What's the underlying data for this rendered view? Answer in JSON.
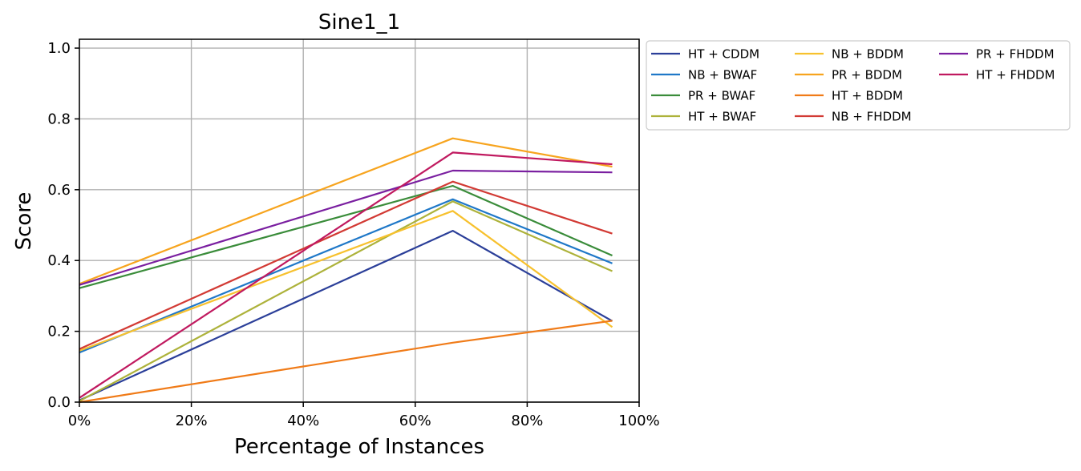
{
  "chart_data": {
    "type": "line",
    "title": "Sine1_1",
    "xlabel": "Percentage of Instances",
    "ylabel": "Score",
    "xlim": [
      0,
      100
    ],
    "ylim": [
      0,
      1.025
    ],
    "x_ticks": [
      0,
      20,
      40,
      60,
      80,
      100
    ],
    "x_tick_labels": [
      "0%",
      "20%",
      "40%",
      "60%",
      "80%",
      "100%"
    ],
    "y_ticks": [
      0.0,
      0.2,
      0.4,
      0.6,
      0.8,
      1.0
    ],
    "y_tick_labels": [
      "0.0",
      "0.2",
      "0.4",
      "0.6",
      "0.8",
      "1.0"
    ],
    "grid": true,
    "legend_placement": "outside-right-top",
    "legend_columns": 3,
    "x": [
      0,
      66.7,
      95.2
    ],
    "series": [
      {
        "name": "HT + CDDM",
        "color": "#2b3f99",
        "values": [
          0.005,
          0.484,
          0.229
        ]
      },
      {
        "name": "NB + BWAF",
        "color": "#1f78c8",
        "values": [
          0.14,
          0.573,
          0.392
        ]
      },
      {
        "name": "PR + BWAF",
        "color": "#3a8c3a",
        "values": [
          0.322,
          0.611,
          0.414
        ]
      },
      {
        "name": "HT + BWAF",
        "color": "#adb23a",
        "values": [
          0.003,
          0.567,
          0.37
        ]
      },
      {
        "name": "NB + BDDM",
        "color": "#f7c12e",
        "values": [
          0.145,
          0.54,
          0.212
        ]
      },
      {
        "name": "PR + BDDM",
        "color": "#f7a41e",
        "values": [
          0.334,
          0.745,
          0.665
        ]
      },
      {
        "name": "HT + BDDM",
        "color": "#f07b18",
        "values": [
          0.0,
          0.168,
          0.23
        ]
      },
      {
        "name": "NB + FHDDM",
        "color": "#d23a34",
        "values": [
          0.15,
          0.623,
          0.476
        ]
      },
      {
        "name": "PR + FHDDM",
        "color": "#7a1fa0",
        "values": [
          0.331,
          0.654,
          0.649
        ]
      },
      {
        "name": "HT + FHDDM",
        "color": "#c0195f",
        "values": [
          0.012,
          0.705,
          0.672
        ]
      }
    ]
  }
}
